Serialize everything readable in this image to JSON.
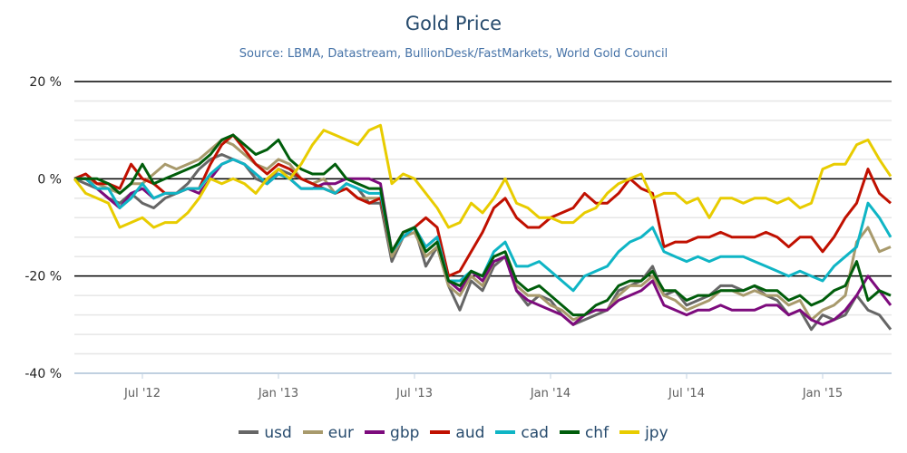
{
  "chart_data": {
    "type": "line",
    "title": "Gold Price",
    "subtitle": "Source: LBMA, Datastream, BullionDesk/FastMarkets, World Gold Council",
    "xlabel": "",
    "ylabel": "",
    "y_unit": "%",
    "ylim": [
      -40,
      20
    ],
    "y_major_ticks": [
      20,
      0,
      -20,
      -40
    ],
    "y_tick_labels": [
      "20 %",
      "0 %",
      "-20 %",
      "-40 %"
    ],
    "y_minor_step": 4,
    "grid": true,
    "x_range": [
      "2012-04",
      "2015-03"
    ],
    "x_tick_labels": [
      "Jul '12",
      "Jan '13",
      "Jul '13",
      "Jan '14",
      "Jul '14",
      "Jan '15"
    ],
    "x_tick_months": [
      3,
      9,
      15,
      21,
      27,
      33
    ],
    "x_step_months": 0.5,
    "legend_position": "bottom",
    "series": [
      {
        "name": "usd",
        "color": "#666666",
        "values": [
          0,
          -1,
          -2,
          -4,
          -5,
          -3,
          -5,
          -6,
          -4,
          -3,
          -1,
          2,
          4,
          5,
          4,
          3,
          0,
          -1,
          2,
          1,
          0,
          -1,
          -2,
          -3,
          -1,
          -2,
          -5,
          -5,
          -17,
          -12,
          -10,
          -18,
          -14,
          -22,
          -27,
          -21,
          -23,
          -18,
          -16,
          -23,
          -26,
          -24,
          -25,
          -28,
          -30,
          -29,
          -28,
          -27,
          -23,
          -22,
          -21,
          -18,
          -24,
          -23,
          -26,
          -25,
          -24,
          -22,
          -22,
          -23,
          -22,
          -24,
          -25,
          -28,
          -27,
          -31,
          -28,
          -29,
          -28,
          -24,
          -27,
          -28,
          -31
        ]
      },
      {
        "name": "eur",
        "color": "#a89a6c",
        "values": [
          0,
          0,
          -1,
          -2,
          -3,
          -1,
          -1,
          1,
          3,
          2,
          3,
          4,
          6,
          8,
          7,
          5,
          3,
          2,
          4,
          3,
          0,
          -1,
          0,
          -3,
          -2,
          -4,
          -4,
          -4,
          -16,
          -12,
          -11,
          -16,
          -14,
          -22,
          -24,
          -20,
          -22,
          -17,
          -16,
          -22,
          -24,
          -24,
          -26,
          -27,
          -29,
          -28,
          -27,
          -27,
          -24,
          -22,
          -22,
          -20,
          -24,
          -25,
          -27,
          -26,
          -25,
          -23,
          -23,
          -24,
          -23,
          -24,
          -24,
          -26,
          -25,
          -29,
          -27,
          -26,
          -24,
          -13,
          -10,
          -15,
          -14
        ]
      },
      {
        "name": "gbp",
        "color": "#7d0b7d",
        "values": [
          0,
          0,
          -2,
          -4,
          -6,
          -3,
          -2,
          -4,
          -3,
          -3,
          -2,
          -3,
          0,
          3,
          4,
          3,
          1,
          -1,
          1,
          0,
          -2,
          -2,
          -1,
          -1,
          0,
          0,
          0,
          -1,
          -15,
          -12,
          -10,
          -14,
          -12,
          -21,
          -23,
          -19,
          -21,
          -17,
          -16,
          -23,
          -25,
          -26,
          -27,
          -28,
          -30,
          -28,
          -27,
          -27,
          -25,
          -24,
          -23,
          -21,
          -26,
          -27,
          -28,
          -27,
          -27,
          -26,
          -27,
          -27,
          -27,
          -26,
          -26,
          -28,
          -27,
          -29,
          -30,
          -29,
          -27,
          -24,
          -20,
          -23,
          -26
        ]
      },
      {
        "name": "aud",
        "color": "#c01000",
        "values": [
          0,
          1,
          -1,
          -1,
          -2,
          3,
          0,
          -1,
          -3,
          -3,
          -2,
          -2,
          3,
          7,
          9,
          6,
          3,
          1,
          3,
          2,
          0,
          -1,
          -2,
          -3,
          -2,
          -4,
          -5,
          -4,
          -15,
          -11,
          -10,
          -8,
          -10,
          -20,
          -19,
          -15,
          -11,
          -6,
          -4,
          -8,
          -10,
          -10,
          -8,
          -7,
          -6,
          -3,
          -5,
          -5,
          -3,
          0,
          -2,
          -3,
          -14,
          -13,
          -13,
          -12,
          -12,
          -11,
          -12,
          -12,
          -12,
          -11,
          -12,
          -14,
          -12,
          -12,
          -15,
          -12,
          -8,
          -5,
          2,
          -3,
          -5
        ]
      },
      {
        "name": "cad",
        "color": "#0fb5c5",
        "values": [
          0,
          0,
          -2,
          -2,
          -6,
          -4,
          -1,
          -4,
          -3,
          -3,
          -2,
          -2,
          1,
          3,
          4,
          3,
          1,
          -1,
          1,
          0,
          -2,
          -2,
          -2,
          -3,
          -1,
          -2,
          -3,
          -3,
          -15,
          -12,
          -10,
          -14,
          -12,
          -21,
          -21,
          -19,
          -20,
          -15,
          -13,
          -18,
          -18,
          -17,
          -19,
          -21,
          -23,
          -20,
          -19,
          -18,
          -15,
          -13,
          -12,
          -10,
          -15,
          -16,
          -17,
          -16,
          -17,
          -16,
          -16,
          -16,
          -17,
          -18,
          -19,
          -20,
          -19,
          -20,
          -21,
          -18,
          -16,
          -14,
          -5,
          -8,
          -12
        ]
      },
      {
        "name": "chf",
        "color": "#005d0b",
        "values": [
          0,
          0,
          0,
          -1,
          -3,
          -1,
          3,
          -1,
          0,
          1,
          2,
          3,
          5,
          8,
          9,
          7,
          5,
          6,
          8,
          4,
          2,
          1,
          1,
          3,
          0,
          -1,
          -2,
          -2,
          -15,
          -11,
          -10,
          -15,
          -13,
          -21,
          -22,
          -19,
          -20,
          -16,
          -15,
          -21,
          -23,
          -22,
          -24,
          -26,
          -28,
          -28,
          -26,
          -25,
          -22,
          -21,
          -21,
          -19,
          -23,
          -23,
          -25,
          -24,
          -24,
          -23,
          -23,
          -23,
          -22,
          -23,
          -23,
          -25,
          -24,
          -26,
          -25,
          -23,
          -22,
          -17,
          -25,
          -23,
          -24
        ]
      },
      {
        "name": "jpy",
        "color": "#e8cc00",
        "values": [
          0,
          -3,
          -4,
          -5,
          -10,
          -9,
          -8,
          -10,
          -9,
          -9,
          -7,
          -4,
          0,
          -1,
          0,
          -1,
          -3,
          0,
          2,
          0,
          3,
          7,
          10,
          9,
          8,
          7,
          10,
          11,
          -1,
          1,
          0,
          -3,
          -6,
          -10,
          -9,
          -5,
          -7,
          -4,
          0,
          -5,
          -6,
          -8,
          -8,
          -9,
          -9,
          -7,
          -6,
          -3,
          -1,
          0,
          1,
          -4,
          -3,
          -3,
          -5,
          -4,
          -8,
          -4,
          -4,
          -5,
          -4,
          -4,
          -5,
          -4,
          -6,
          -5,
          2,
          3,
          3,
          7,
          8,
          4,
          0.5
        ]
      }
    ]
  }
}
